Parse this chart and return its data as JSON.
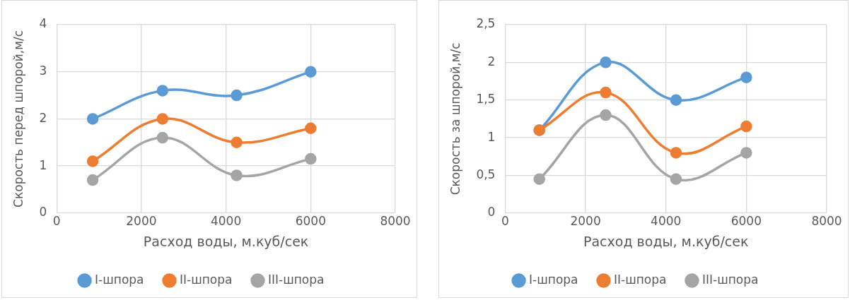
{
  "chart_data": [
    {
      "type": "line",
      "xlabel": "Расход воды, м.куб/сек",
      "ylabel": "Скорость перед шпорой,м/с",
      "x": [
        850,
        2500,
        4250,
        6000
      ],
      "xlim": [
        0,
        8000
      ],
      "xticks": [
        0,
        2000,
        4000,
        6000,
        8000
      ],
      "ylim": [
        0,
        4
      ],
      "yticks": [
        0,
        1,
        2,
        3,
        4
      ],
      "grid": true,
      "legend": "bottom",
      "marker": "circle",
      "line_style": "solid",
      "series": [
        {
          "name": "I-шпора",
          "color": "#5b9bd5",
          "values": [
            2,
            2.6,
            2.5,
            3
          ]
        },
        {
          "name": "II-шпора",
          "color": "#ed7d31",
          "values": [
            1.1,
            2,
            1.5,
            1.8
          ]
        },
        {
          "name": "III-шпора",
          "color": "#a5a5a5",
          "values": [
            0.7,
            1.6,
            0.8,
            1.15
          ]
        }
      ]
    },
    {
      "type": "line",
      "xlabel": "Расход воды, м.куб/сек",
      "ylabel": "Скорость за шпорой,м/с",
      "x": [
        850,
        2500,
        4250,
        6000
      ],
      "xlim": [
        0,
        8000
      ],
      "xticks": [
        0,
        2000,
        4000,
        6000,
        8000
      ],
      "ylim": [
        0,
        2.5
      ],
      "yticks": [
        0,
        {
          "value": 0.5,
          "label": "0,5"
        },
        1,
        {
          "value": 1.5,
          "label": "1,5"
        },
        2,
        {
          "value": 2.5,
          "label": "2,5"
        }
      ],
      "grid": true,
      "legend": "bottom",
      "marker": "circle",
      "line_style": "solid",
      "series": [
        {
          "name": "I-шпора",
          "color": "#5b9bd5",
          "values": [
            1.1,
            2,
            1.5,
            1.8
          ]
        },
        {
          "name": "II-шпора",
          "color": "#ed7d31",
          "values": [
            1.1,
            1.6,
            0.8,
            1.15
          ]
        },
        {
          "name": "III-шпора",
          "color": "#a5a5a5",
          "values": [
            0.45,
            1.3,
            0.45,
            0.8
          ]
        }
      ]
    }
  ]
}
